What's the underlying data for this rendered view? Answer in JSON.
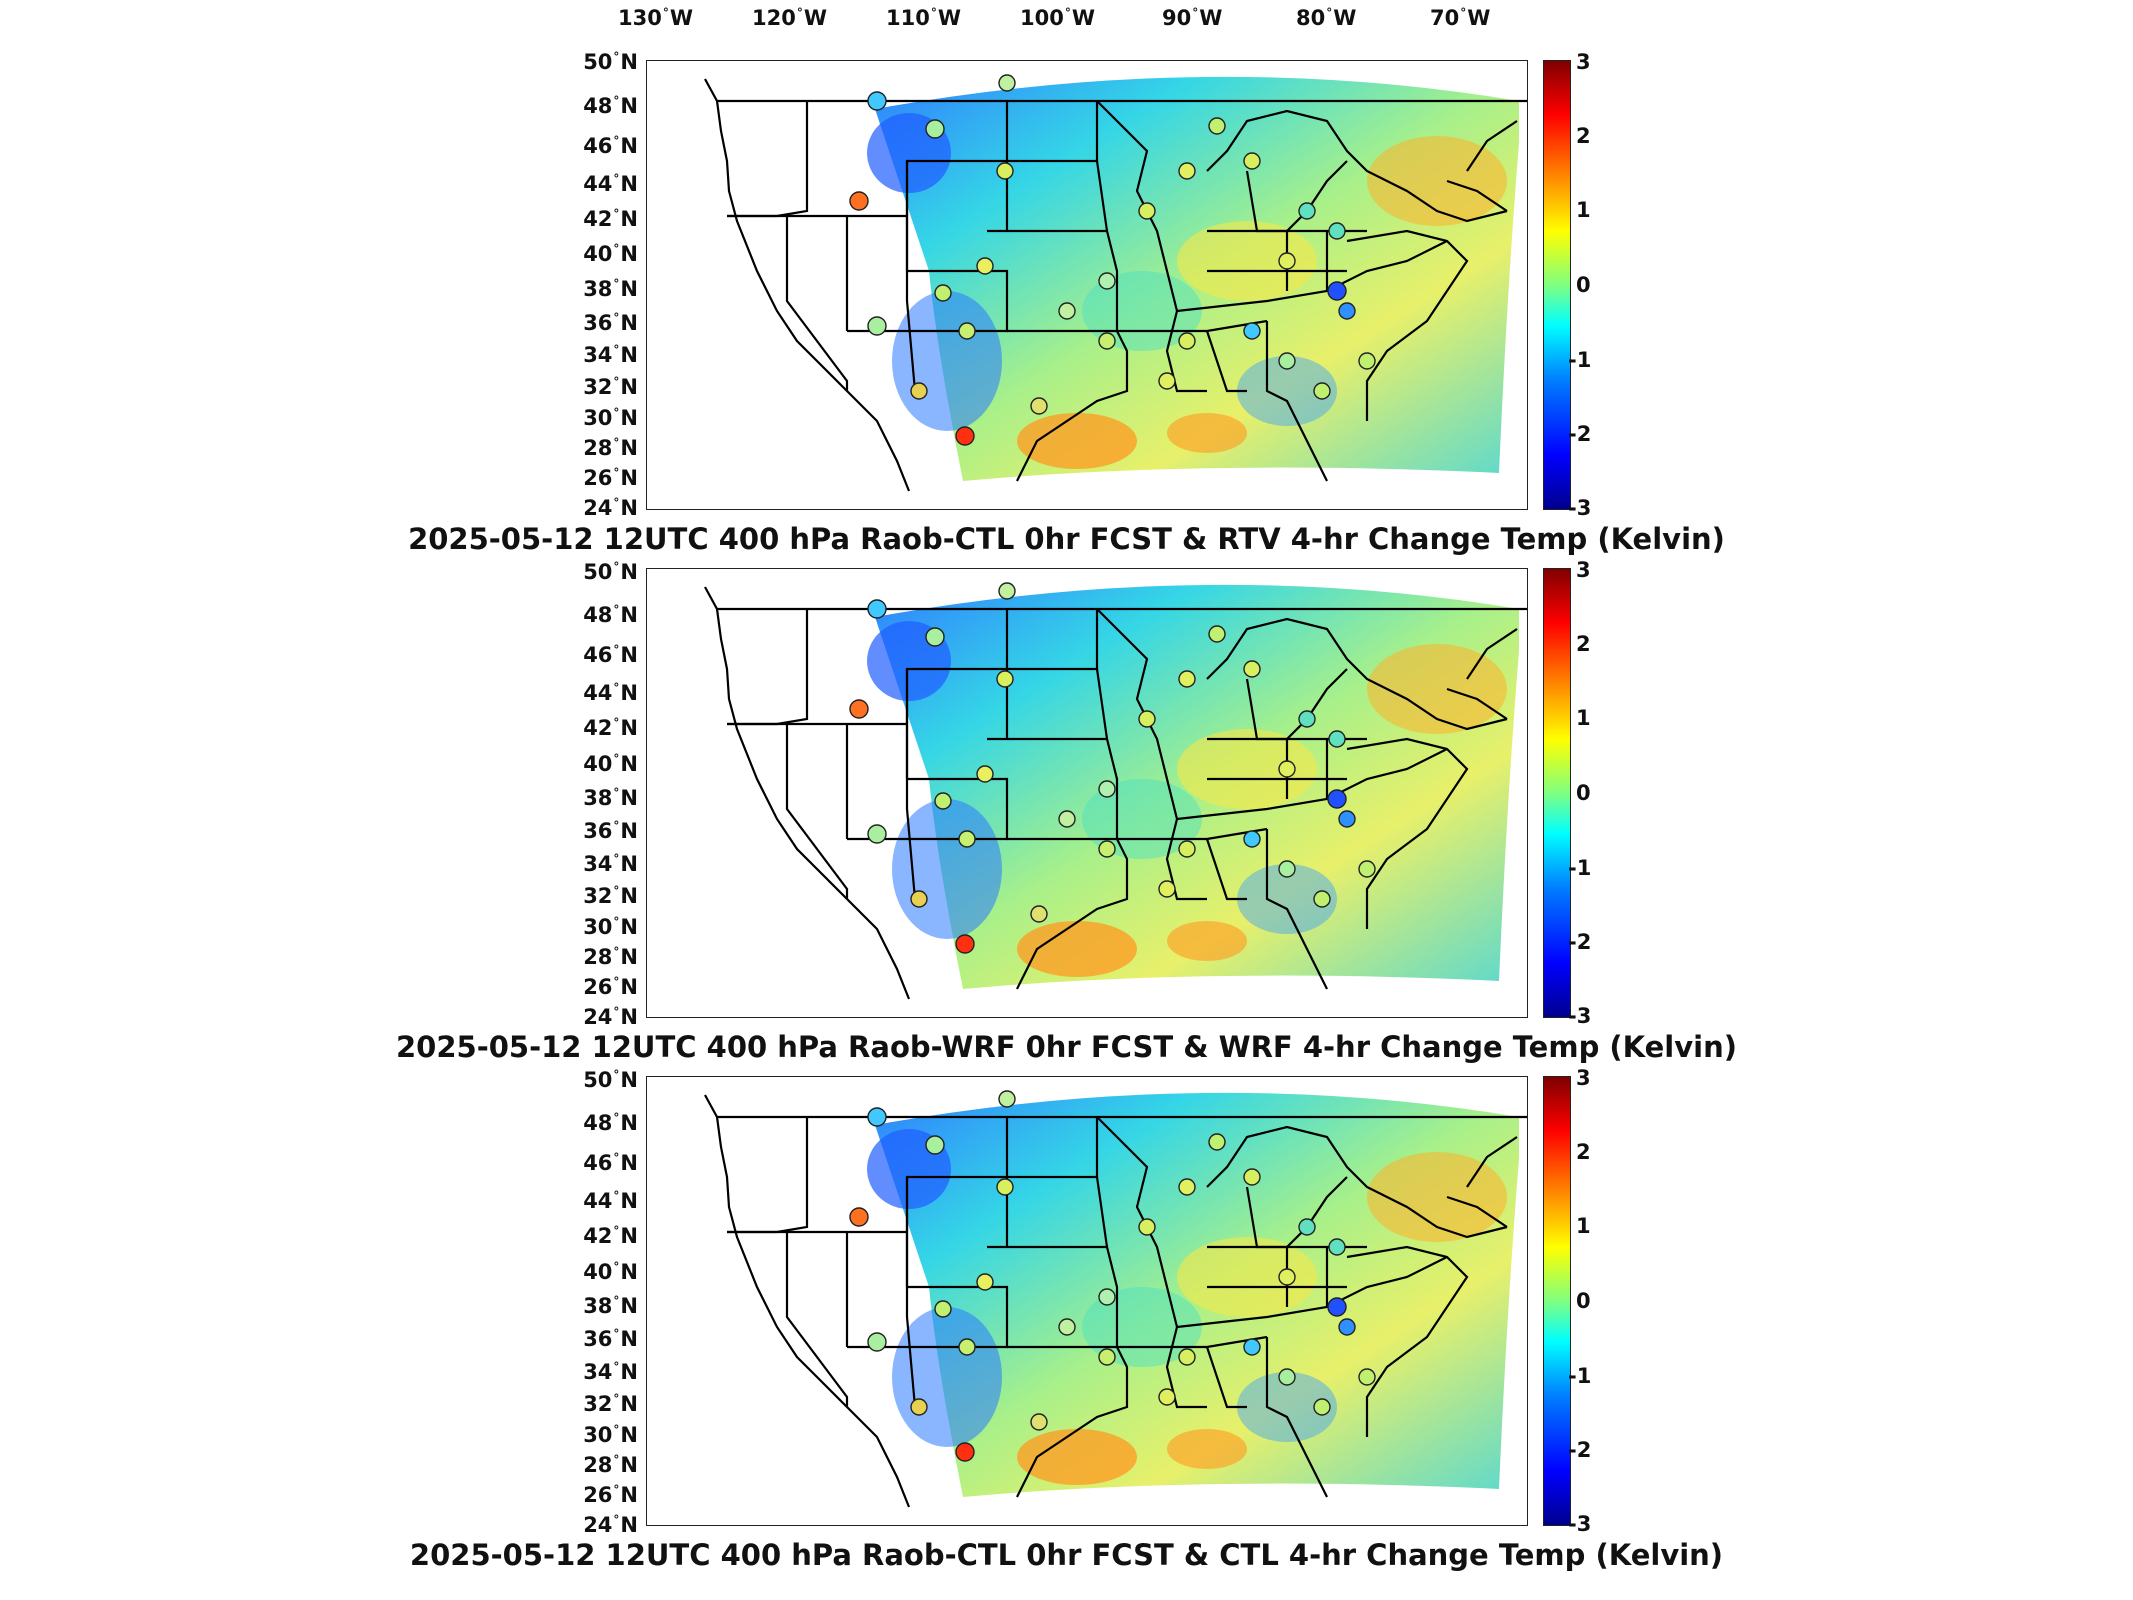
{
  "lon_labels": [
    "130",
    "120",
    "110",
    "100",
    "90",
    "80",
    "70"
  ],
  "lon_suffix": "W",
  "lat_labels": [
    "50",
    "48",
    "46",
    "44",
    "42",
    "40",
    "38",
    "36",
    "34",
    "32",
    "30",
    "28",
    "26",
    "24"
  ],
  "lat_suffix": "N",
  "colorbar": {
    "ticks": [
      "3",
      "2",
      "1",
      "0",
      "-1",
      "-2",
      "-3"
    ],
    "min": -3,
    "max": 3,
    "colormap": "jet"
  },
  "colors": {
    "low": "#00008f",
    "mid": "#80ff80",
    "high": "#800000",
    "border": "#000000"
  },
  "panels": [
    {
      "title": "2025-05-12 12UTC 400 hPa Raob-CTL 0hr FCST & RTV 4-hr Change Temp (Kelvin)"
    },
    {
      "title": "2025-05-12 12UTC 400 hPa Raob-WRF 0hr FCST & WRF 4-hr Change Temp (Kelvin)"
    },
    {
      "title": "2025-05-12 12UTC 400 hPa Raob-CTL 0hr FCST & CTL 4-hr Change Temp (Kelvin)"
    }
  ]
}
